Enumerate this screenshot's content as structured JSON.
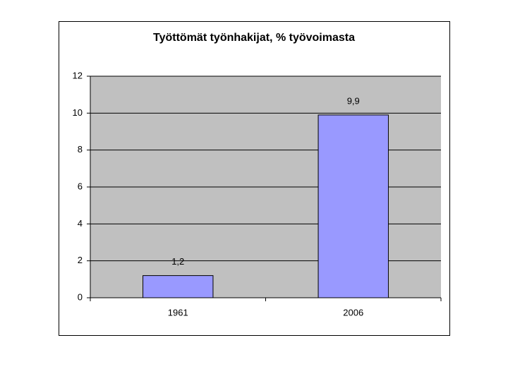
{
  "chart_data": {
    "type": "bar",
    "title": "Työttömät työnhakijat, % työvoimasta",
    "categories": [
      "1961",
      "2006"
    ],
    "values": [
      1.2,
      9.9
    ],
    "value_labels": [
      "1,2",
      "9,9"
    ],
    "color": "#9999ff",
    "ylim": [
      0,
      12
    ],
    "yticks": [
      0,
      2,
      4,
      6,
      8,
      10,
      12
    ],
    "grid": true
  }
}
